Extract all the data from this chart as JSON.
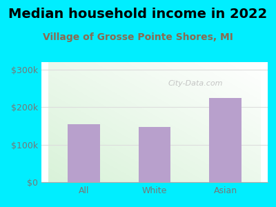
{
  "title": "Median household income in 2022",
  "subtitle": "Village of Grosse Pointe Shores, MI",
  "categories": [
    "All",
    "White",
    "Asian"
  ],
  "values": [
    155000,
    148000,
    225000
  ],
  "bar_color": "#b8a0cc",
  "title_fontsize": 14,
  "title_fontweight": "bold",
  "subtitle_fontsize": 10,
  "subtitle_color": "#8a6a50",
  "tick_label_fontsize": 9,
  "tick_color": "#777777",
  "ytick_labels": [
    "$0",
    "$100k",
    "$200k",
    "$300k"
  ],
  "ytick_values": [
    0,
    100000,
    200000,
    300000
  ],
  "ylim": [
    0,
    320000
  ],
  "bg_outer": "#00eeff",
  "bg_plot_topleft": "#d8f0d8",
  "bg_plot_bottomright": "#f8fff8",
  "watermark": "City-Data.com",
  "watermark_color": "#bbbbbb",
  "grid_color": "#dddddd",
  "bar_width": 0.45
}
